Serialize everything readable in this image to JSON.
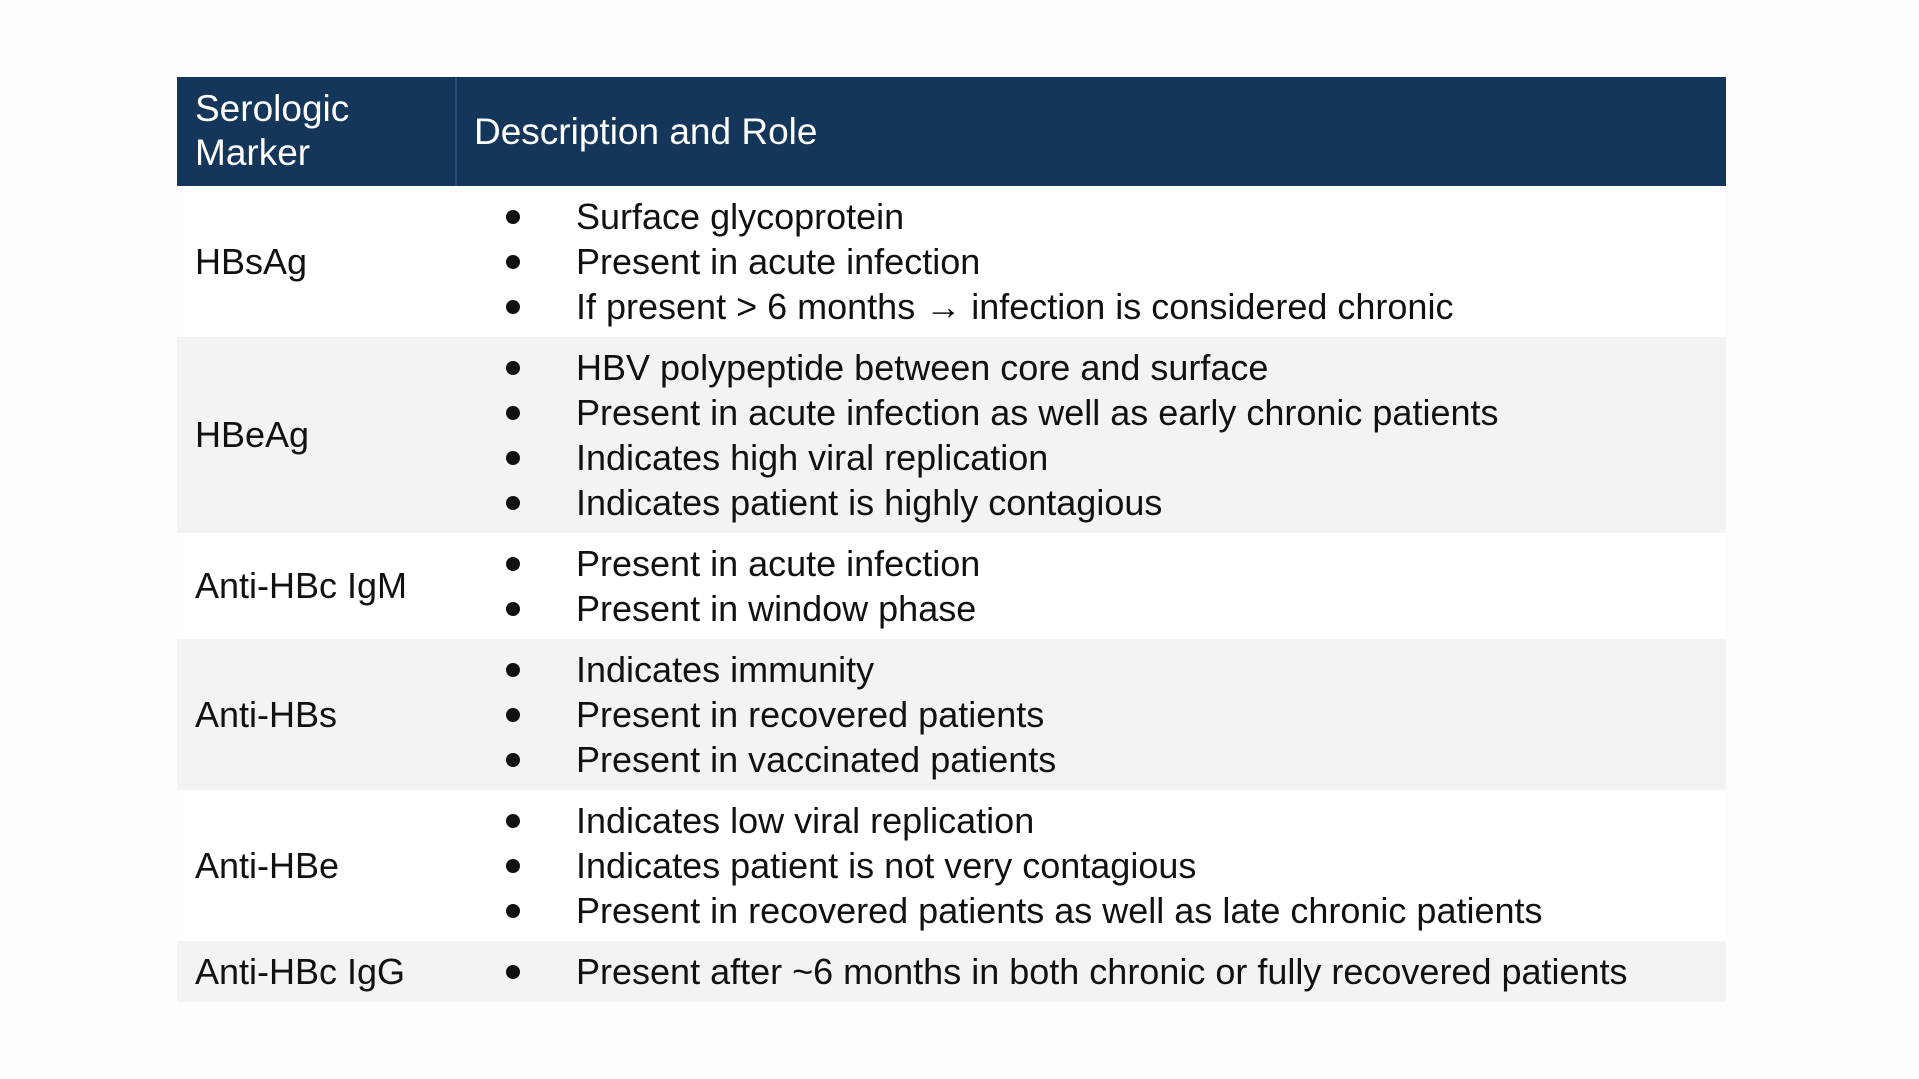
{
  "table": {
    "header": {
      "marker_col": "Serologic Marker",
      "description_col": "Description and Role"
    },
    "rows": [
      {
        "marker": "HBsAg",
        "items": [
          "Surface glycoprotein",
          "Present in acute infection",
          "If present > 6 months → infection is considered chronic"
        ]
      },
      {
        "marker": "HBeAg",
        "items": [
          "HBV polypeptide between core and surface",
          "Present in acute infection as well as early chronic patients",
          "Indicates high viral replication",
          "Indicates patient is highly contagious"
        ]
      },
      {
        "marker": "Anti-HBc IgM",
        "items": [
          "Present in acute infection",
          "Present in window phase"
        ]
      },
      {
        "marker": "Anti-HBs",
        "items": [
          "Indicates immunity",
          "Present in recovered patients",
          "Present in vaccinated patients"
        ]
      },
      {
        "marker": "Anti-HBe",
        "items": [
          "Indicates low viral replication",
          "Indicates patient is not very contagious",
          "Present in recovered patients as well as late chronic patients"
        ]
      },
      {
        "marker": "Anti-HBc IgG",
        "items": [
          "Present after ~6 months in both chronic or fully recovered patients"
        ]
      }
    ]
  },
  "colors": {
    "header_bg": "#14365a",
    "header_text": "#ffffff",
    "row_alt_bg": "#f3f2f5"
  }
}
